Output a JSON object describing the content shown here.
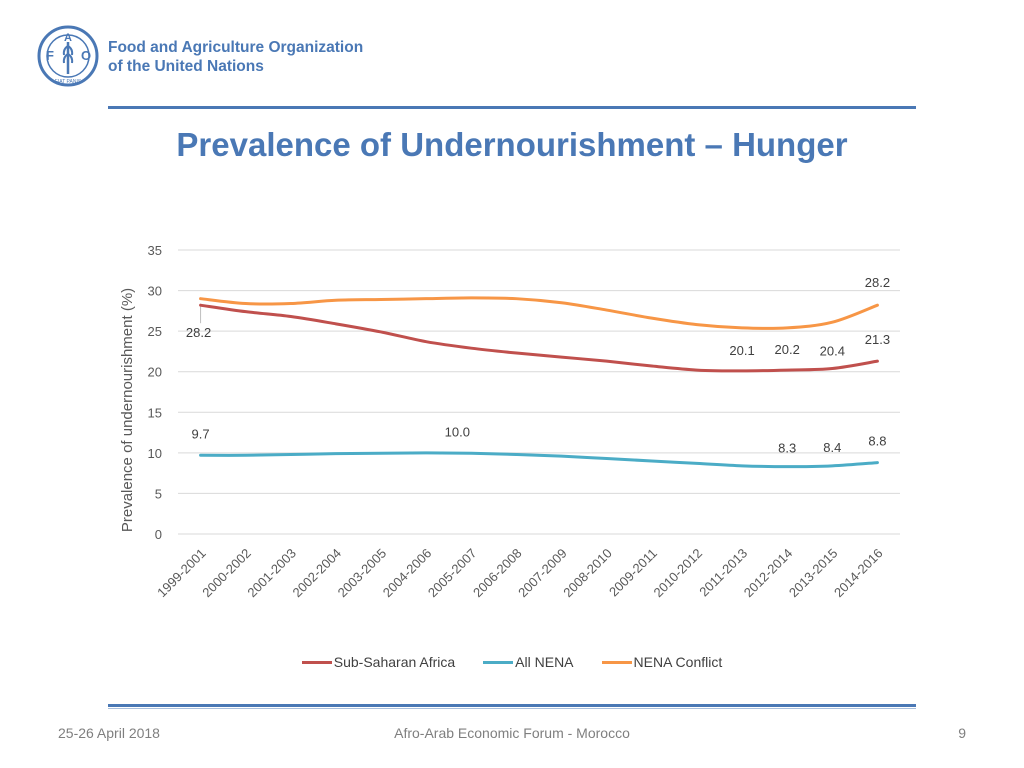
{
  "header": {
    "org_name_line1": "Food and Agriculture Organization",
    "org_name_line2": "of the United Nations",
    "logo_letters": [
      "F",
      "A",
      "O"
    ],
    "logo_motto": "FIAT PANIS"
  },
  "slide_title": "Prevalence of Undernourishment – Hunger",
  "footer": {
    "date": "25-26 April 2018",
    "event": "Afro-Arab Economic Forum - Morocco",
    "page_number": "9"
  },
  "colors": {
    "brand": "#4a78b5",
    "sub_saharan_africa": "#c0504d",
    "all_nena": "#4bacc6",
    "nena_conflict": "#f79646",
    "grid": "#d9d9d9",
    "axis_text": "#595959"
  },
  "chart_data": {
    "type": "line",
    "title": "",
    "xlabel": "",
    "ylabel": "Prevalence of undernourishment (%)",
    "ylim": [
      0,
      35
    ],
    "yticks": [
      0,
      5,
      10,
      15,
      20,
      25,
      30,
      35
    ],
    "grid": true,
    "legend_position": "bottom",
    "categories": [
      "1999-2001",
      "2000-2002",
      "2001-2003",
      "2002-2004",
      "2003-2005",
      "2004-2006",
      "2005-2007",
      "2006-2008",
      "2007-2009",
      "2008-2010",
      "2009-2011",
      "2010-2012",
      "2011-2013",
      "2012-2014",
      "2013-2015",
      "2014-2016"
    ],
    "series": [
      {
        "name": "Sub-Saharan Africa",
        "color": "#c0504d",
        "values": [
          28.2,
          27.4,
          26.8,
          25.9,
          24.9,
          23.7,
          22.9,
          22.3,
          21.8,
          21.3,
          20.7,
          20.2,
          20.1,
          20.2,
          20.4,
          21.3
        ],
        "labels": [
          {
            "index": 0,
            "text": "28.2"
          },
          {
            "index": 12,
            "text": "20.1"
          },
          {
            "index": 13,
            "text": "20.2"
          },
          {
            "index": 14,
            "text": "20.4"
          },
          {
            "index": 15,
            "text": "21.3"
          }
        ]
      },
      {
        "name": "All NENA",
        "color": "#4bacc6",
        "values": [
          9.7,
          9.7,
          9.8,
          9.9,
          9.95,
          10.0,
          9.95,
          9.8,
          9.6,
          9.3,
          9.0,
          8.7,
          8.4,
          8.3,
          8.4,
          8.8
        ],
        "labels": [
          {
            "index": 0,
            "text": "9.7"
          },
          {
            "index": 6,
            "text": "10.0"
          },
          {
            "index": 13,
            "text": "8.3"
          },
          {
            "index": 14,
            "text": "8.4"
          },
          {
            "index": 15,
            "text": "8.8"
          }
        ]
      },
      {
        "name": "NENA Conflict",
        "color": "#f79646",
        "values": [
          29.0,
          28.4,
          28.4,
          28.8,
          28.9,
          29.0,
          29.1,
          29.0,
          28.5,
          27.6,
          26.6,
          25.8,
          25.4,
          25.4,
          26.1,
          28.2
        ],
        "labels": [
          {
            "index": 15,
            "text": "28.2"
          }
        ]
      }
    ]
  }
}
